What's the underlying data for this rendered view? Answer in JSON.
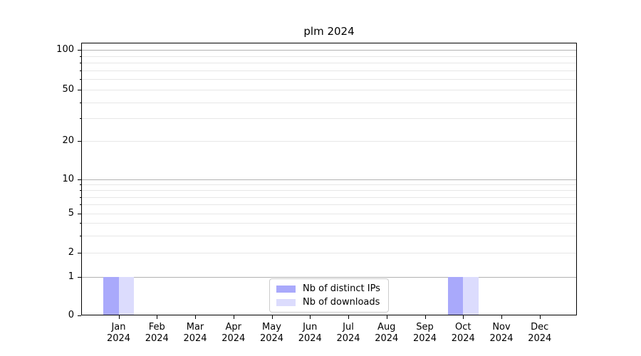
{
  "figure": {
    "background": "#ffffff"
  },
  "chart_data": {
    "type": "bar",
    "title": "plm 2024",
    "categories": [
      "Jan 2024",
      "Feb 2024",
      "Mar 2024",
      "Apr 2024",
      "May 2024",
      "Jun 2024",
      "Jul 2024",
      "Aug 2024",
      "Sep 2024",
      "Oct 2024",
      "Nov 2024",
      "Dec 2024"
    ],
    "series": [
      {
        "name": "Nb of distinct IPs",
        "color": "#a9a9fb",
        "values": [
          1,
          0,
          0,
          0,
          0,
          0,
          0,
          0,
          0,
          1,
          0,
          0
        ]
      },
      {
        "name": "Nb of downloads",
        "color": "#dcdcfd",
        "values": [
          1,
          0,
          0,
          0,
          0,
          0,
          0,
          0,
          0,
          1,
          0,
          0
        ]
      }
    ],
    "xlabel": "",
    "ylabel": "",
    "yscale": "symlog (linear 0-1, logarithmic above 1)",
    "ylim": [
      0,
      112
    ],
    "ytick_labels": [
      0,
      1,
      2,
      5,
      10,
      20,
      50,
      100
    ],
    "ygrid_major": [
      1,
      10,
      100
    ],
    "ygrid_minor": [
      2,
      3,
      4,
      5,
      6,
      7,
      8,
      9,
      20,
      30,
      40,
      50,
      60,
      70,
      80,
      90
    ],
    "grid": true,
    "legend": {
      "position": "lower center, inside plot",
      "entries": [
        "Nb of distinct IPs",
        "Nb of downloads"
      ]
    },
    "colors": {
      "grid_major": "#b2b2b2",
      "grid_minor": "#e7e7e7",
      "axis": "#000000",
      "text": "#000000",
      "legend_border": "#cccccc",
      "background": "#ffffff"
    }
  }
}
